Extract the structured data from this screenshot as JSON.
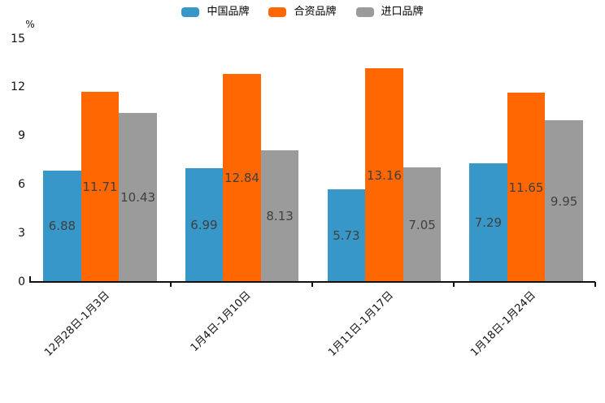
{
  "chart_data": {
    "type": "bar",
    "title": "",
    "categories": [
      "12月28日-1月3日",
      "1月4日-1月10日",
      "1月11日-1月17日",
      "1月18日-1月24日"
    ],
    "series": [
      {
        "name": "中国品牌",
        "color": "#3797C9",
        "values": [
          6.88,
          6.99,
          5.73,
          7.29
        ]
      },
      {
        "name": "合资品牌",
        "color": "#FF6702",
        "values": [
          11.71,
          12.84,
          13.16,
          11.65
        ]
      },
      {
        "name": "进口品牌",
        "color": "#9B9B9B",
        "values": [
          10.43,
          8.13,
          7.05,
          9.95
        ]
      }
    ],
    "xlabel": "",
    "ylabel": "%",
    "ylim": [
      0,
      15
    ],
    "yticks": [
      0,
      3,
      6,
      9,
      12,
      15
    ],
    "grid": false,
    "legend_position": "top",
    "value_labels": "centered-inside-bars",
    "value_label_color": "#404040",
    "axis_color": "#111111",
    "background_color": "#FFFFFF"
  }
}
